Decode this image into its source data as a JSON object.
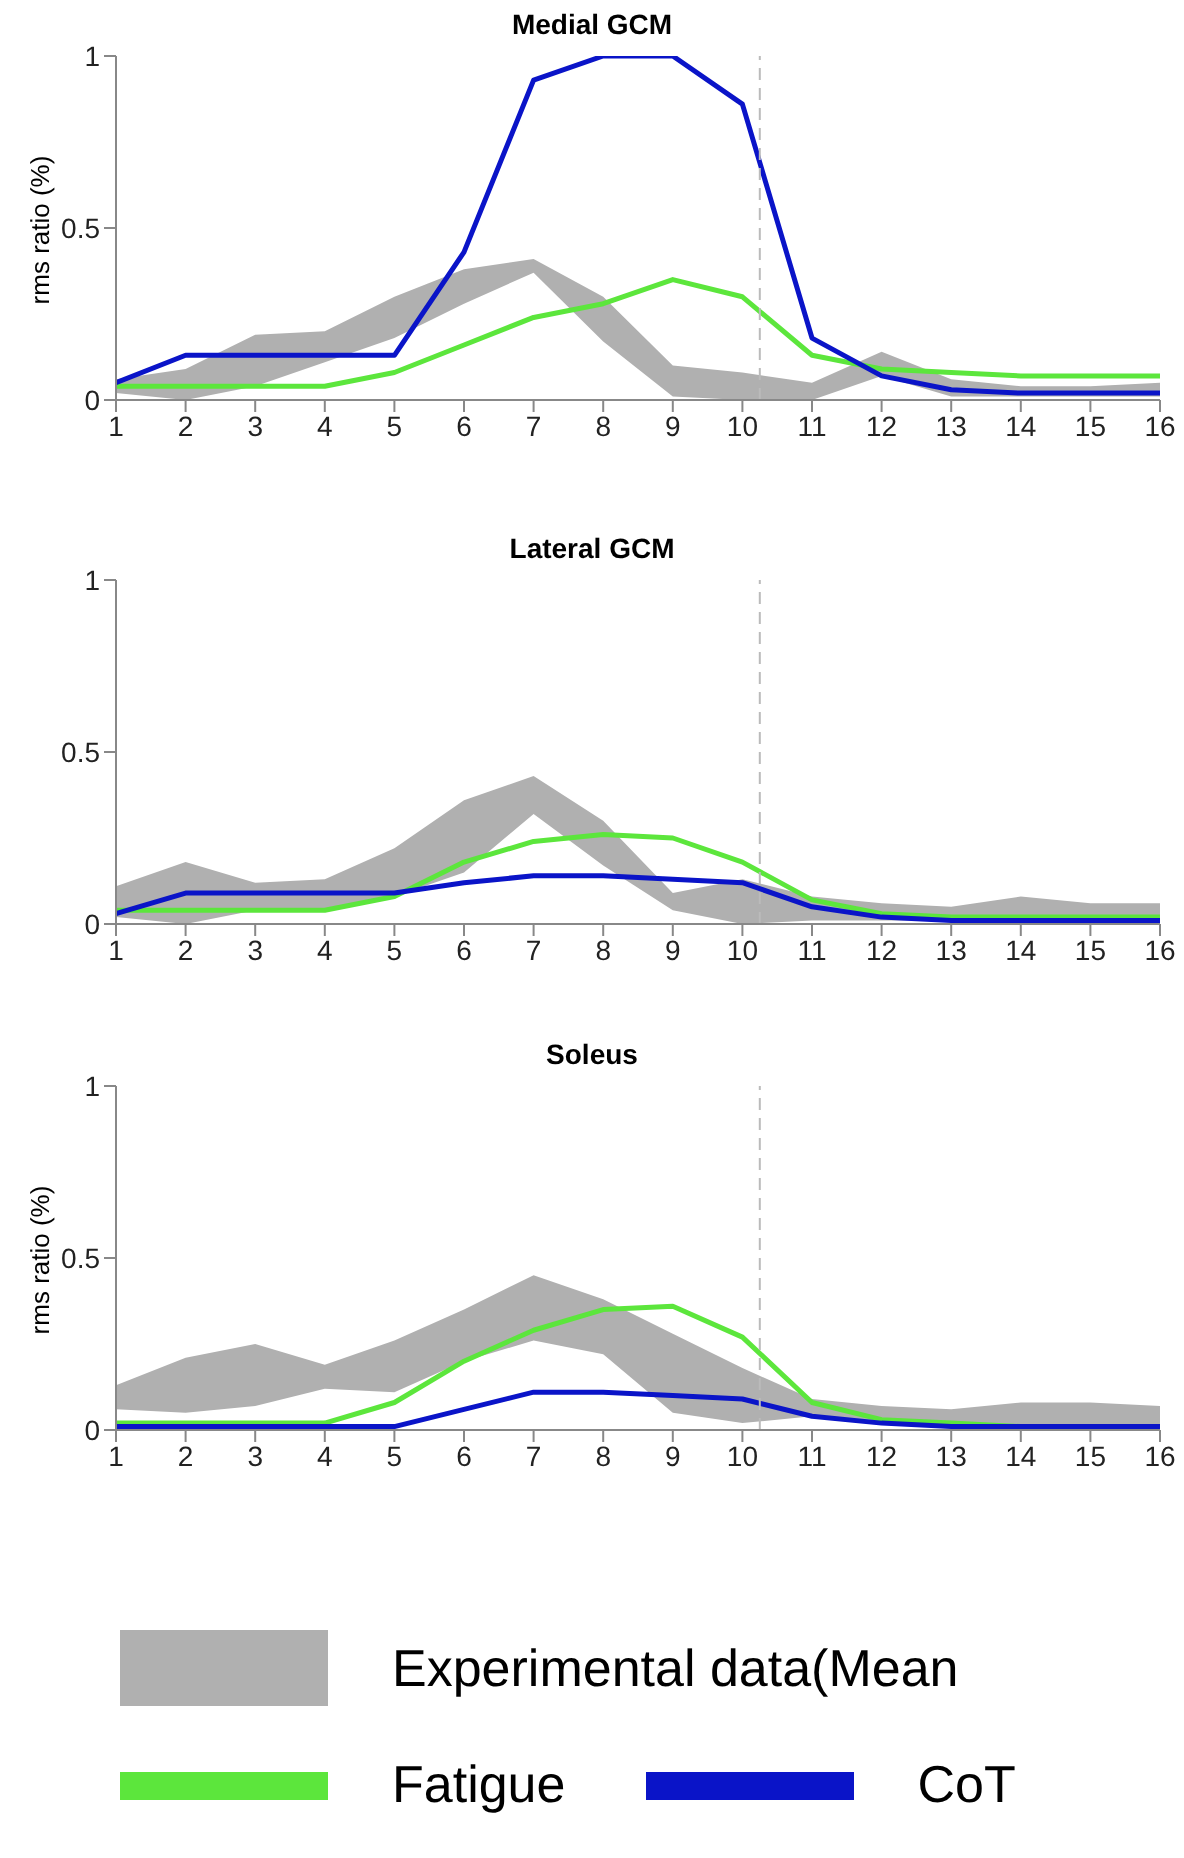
{
  "chart_data": [
    {
      "type": "line",
      "title": "Medial GCM",
      "ylabel": "rms ratio (%)",
      "x": [
        1,
        2,
        3,
        4,
        5,
        6,
        7,
        8,
        9,
        10,
        11,
        12,
        13,
        14,
        15,
        16
      ],
      "xlim": [
        1,
        16
      ],
      "xticks": [
        1,
        2,
        3,
        4,
        5,
        6,
        7,
        8,
        9,
        10,
        11,
        12,
        13,
        14,
        15,
        16
      ],
      "ylim": [
        0,
        1
      ],
      "yticks": [
        0,
        0.5,
        1
      ],
      "legend": false,
      "ref_lines": [
        {
          "axis": "x",
          "value": 10.25,
          "color": "#bbbbbb",
          "line_style": "dashed"
        }
      ],
      "series": [
        {
          "color": "#b0b0b0",
          "values": [
            null,
            null,
            null,
            null,
            null,
            null,
            null,
            null,
            null,
            null,
            null,
            null,
            null,
            null,
            null,
            null
          ],
          "lower": [
            0.02,
            0,
            0.04,
            0.11,
            0.18,
            0.28,
            0.37,
            0.17,
            0.01,
            0,
            0,
            0.07,
            0.01,
            0.01,
            0.01,
            0.01
          ],
          "upper": [
            0.06,
            0.09,
            0.19,
            0.2,
            0.3,
            0.38,
            0.41,
            0.3,
            0.1,
            0.08,
            0.05,
            0.14,
            0.06,
            0.04,
            0.04,
            0.05
          ]
        },
        {
          "color": "#5ce63c",
          "values": [
            0.04,
            0.04,
            0.04,
            0.04,
            0.08,
            0.16,
            0.24,
            0.28,
            0.35,
            0.3,
            0.13,
            0.09,
            0.08,
            0.07,
            0.07,
            0.07
          ]
        },
        {
          "color": "#0a14c8",
          "values": [
            0.05,
            0.13,
            0.13,
            0.13,
            0.13,
            0.43,
            0.93,
            1,
            1,
            0.86,
            0.18,
            0.07,
            0.03,
            0.02,
            0.02,
            0.02
          ]
        }
      ]
    },
    {
      "type": "line",
      "title": "Lateral GCM",
      "x": [
        1,
        2,
        3,
        4,
        5,
        6,
        7,
        8,
        9,
        10,
        11,
        12,
        13,
        14,
        15,
        16
      ],
      "xlim": [
        1,
        16
      ],
      "xticks": [
        1,
        2,
        3,
        4,
        5,
        6,
        7,
        8,
        9,
        10,
        11,
        12,
        13,
        14,
        15,
        16
      ],
      "ylim": [
        0,
        1
      ],
      "yticks": [
        0,
        0.5,
        1
      ],
      "legend": false,
      "ref_lines": [
        {
          "axis": "x",
          "value": 10.25,
          "color": "#bbbbbb",
          "line_style": "dashed"
        }
      ],
      "series": [
        {
          "color": "#b0b0b0",
          "values": [
            null,
            null,
            null,
            null,
            null,
            null,
            null,
            null,
            null,
            null,
            null,
            null,
            null,
            null,
            null,
            null
          ],
          "lower": [
            0.02,
            0,
            0.04,
            0.04,
            0.08,
            0.15,
            0.32,
            0.17,
            0.04,
            0,
            0.01,
            0.01,
            0.01,
            0.01,
            0.01,
            0.01
          ],
          "upper": [
            0.11,
            0.18,
            0.12,
            0.13,
            0.22,
            0.36,
            0.43,
            0.3,
            0.09,
            0.13,
            0.08,
            0.06,
            0.05,
            0.08,
            0.06,
            0.06
          ]
        },
        {
          "color": "#5ce63c",
          "values": [
            0.04,
            0.04,
            0.04,
            0.04,
            0.08,
            0.18,
            0.24,
            0.26,
            0.25,
            0.18,
            0.07,
            0.03,
            0.02,
            0.02,
            0.02,
            0.02
          ]
        },
        {
          "color": "#0a14c8",
          "values": [
            0.03,
            0.09,
            0.09,
            0.09,
            0.09,
            0.12,
            0.14,
            0.14,
            0.13,
            0.12,
            0.05,
            0.02,
            0.01,
            0.01,
            0.01,
            0.01
          ]
        }
      ]
    },
    {
      "type": "line",
      "title": "Soleus",
      "ylabel": "rms ratio (%)",
      "x": [
        1,
        2,
        3,
        4,
        5,
        6,
        7,
        8,
        9,
        10,
        11,
        12,
        13,
        14,
        15,
        16
      ],
      "xlim": [
        1,
        16
      ],
      "xticks": [
        1,
        2,
        3,
        4,
        5,
        6,
        7,
        8,
        9,
        10,
        11,
        12,
        13,
        14,
        15,
        16
      ],
      "ylim": [
        0,
        1
      ],
      "yticks": [
        0,
        0.5,
        1
      ],
      "legend": "bottom",
      "ref_lines": [
        {
          "axis": "x",
          "value": 10.25,
          "color": "#bbbbbb",
          "line_style": "dashed"
        }
      ],
      "series": [
        {
          "name": "Experimental data(Mean",
          "color": "#b0b0b0",
          "values": [
            null,
            null,
            null,
            null,
            null,
            null,
            null,
            null,
            null,
            null,
            null,
            null,
            null,
            null,
            null,
            null
          ],
          "lower": [
            0.06,
            0.05,
            0.07,
            0.12,
            0.11,
            0.2,
            0.26,
            0.22,
            0.05,
            0.02,
            0.04,
            0.02,
            0.01,
            0.01,
            0.01,
            0.01
          ],
          "upper": [
            0.13,
            0.21,
            0.25,
            0.19,
            0.26,
            0.35,
            0.45,
            0.38,
            0.28,
            0.18,
            0.09,
            0.07,
            0.06,
            0.08,
            0.08,
            0.07
          ]
        },
        {
          "name": "Fatigue",
          "color": "#5ce63c",
          "values": [
            0.02,
            0.02,
            0.02,
            0.02,
            0.08,
            0.2,
            0.29,
            0.35,
            0.36,
            0.27,
            0.08,
            0.03,
            0.02,
            0.01,
            0.01,
            0.01
          ]
        },
        {
          "name": "CoT",
          "color": "#0a14c8",
          "values": [
            0.01,
            0.01,
            0.01,
            0.01,
            0.01,
            0.06,
            0.11,
            0.11,
            0.1,
            0.09,
            0.04,
            0.02,
            0.01,
            0.01,
            0.01,
            0.01
          ]
        }
      ]
    }
  ]
}
